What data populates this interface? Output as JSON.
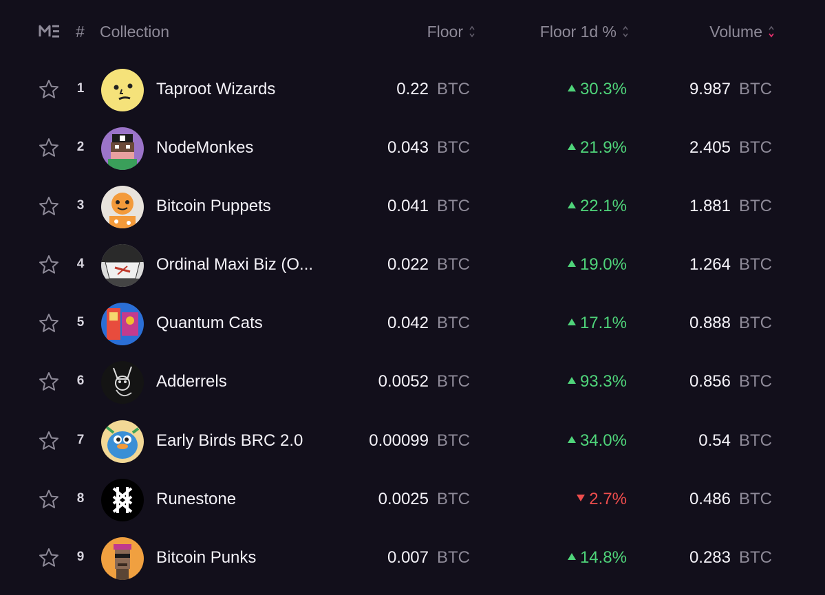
{
  "header": {
    "hash": "#",
    "collection": "Collection",
    "floor": "Floor",
    "floor_1d": "Floor 1d %",
    "volume": "Volume"
  },
  "colors": {
    "background": "#120f1b",
    "up": "#4fd47a",
    "down": "#ee4d4d",
    "muted": "#8e8a98",
    "sort_active": "#e2306c"
  },
  "rows": [
    {
      "rank": "1",
      "name": "Taproot Wizards",
      "floor": "0.22",
      "floor_unit": "BTC",
      "change": "30.3%",
      "direction": "up",
      "volume": "9.987",
      "volume_unit": "BTC"
    },
    {
      "rank": "2",
      "name": "NodeMonkes",
      "floor": "0.043",
      "floor_unit": "BTC",
      "change": "21.9%",
      "direction": "up",
      "volume": "2.405",
      "volume_unit": "BTC"
    },
    {
      "rank": "3",
      "name": "Bitcoin Puppets",
      "floor": "0.041",
      "floor_unit": "BTC",
      "change": "22.1%",
      "direction": "up",
      "volume": "1.881",
      "volume_unit": "BTC"
    },
    {
      "rank": "4",
      "name": "Ordinal Maxi Biz (O...",
      "floor": "0.022",
      "floor_unit": "BTC",
      "change": "19.0%",
      "direction": "up",
      "volume": "1.264",
      "volume_unit": "BTC"
    },
    {
      "rank": "5",
      "name": "Quantum Cats",
      "floor": "0.042",
      "floor_unit": "BTC",
      "change": "17.1%",
      "direction": "up",
      "volume": "0.888",
      "volume_unit": "BTC"
    },
    {
      "rank": "6",
      "name": "Adderrels",
      "floor": "0.0052",
      "floor_unit": "BTC",
      "change": "93.3%",
      "direction": "up",
      "volume": "0.856",
      "volume_unit": "BTC"
    },
    {
      "rank": "7",
      "name": "Early Birds BRC 2.0",
      "floor": "0.00099",
      "floor_unit": "BTC",
      "change": "34.0%",
      "direction": "up",
      "volume": "0.54",
      "volume_unit": "BTC"
    },
    {
      "rank": "8",
      "name": "Runestone",
      "floor": "0.0025",
      "floor_unit": "BTC",
      "change": "2.7%",
      "direction": "down",
      "volume": "0.486",
      "volume_unit": "BTC"
    },
    {
      "rank": "9",
      "name": "Bitcoin Punks",
      "floor": "0.007",
      "floor_unit": "BTC",
      "change": "14.8%",
      "direction": "up",
      "volume": "0.283",
      "volume_unit": "BTC"
    }
  ]
}
